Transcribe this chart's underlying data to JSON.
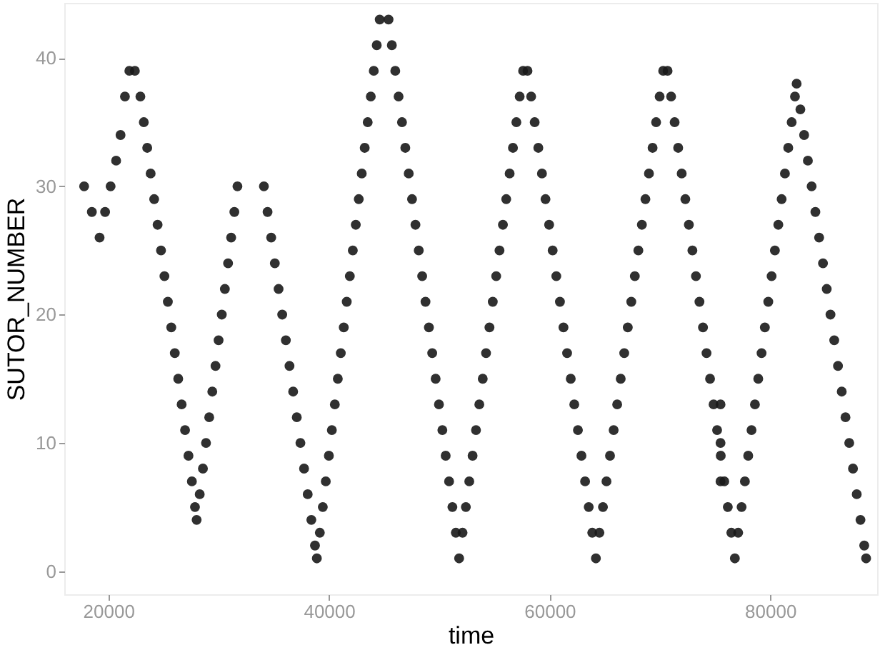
{
  "chart_data": {
    "type": "scatter",
    "xlabel": "time",
    "ylabel": "SUTOR_NUMBER",
    "color": "#1a1a1a",
    "marker": "circle",
    "grid": false,
    "xlim": [
      16000,
      89700
    ],
    "xticks": [
      20000,
      40000,
      60000,
      80000
    ],
    "ylim": [
      -1.8,
      44.3
    ],
    "yticks": [
      0,
      10,
      20,
      30,
      40
    ],
    "x": [
      17800,
      18500,
      19200,
      19700,
      20200,
      20700,
      21100,
      21500,
      21900,
      22400,
      22900,
      23210,
      23520,
      23830,
      24150,
      24460,
      24770,
      25080,
      25390,
      25700,
      26020,
      26330,
      26640,
      26950,
      27260,
      27570,
      27850,
      28000,
      28280,
      28570,
      28850,
      29140,
      29420,
      29710,
      29990,
      30280,
      30560,
      30850,
      31130,
      31420,
      31700,
      34100,
      34430,
      34760,
      35090,
      35430,
      35760,
      36090,
      36420,
      36750,
      37080,
      37410,
      37740,
      38070,
      38400,
      38730,
      38900,
      39170,
      39440,
      39710,
      39990,
      40260,
      40530,
      40800,
      41070,
      41340,
      41610,
      41890,
      42160,
      42430,
      42700,
      42970,
      43240,
      43510,
      43790,
      44060,
      44330,
      44600,
      45400,
      45700,
      46010,
      46310,
      46620,
      46920,
      47230,
      47530,
      47840,
      48140,
      48450,
      48750,
      49060,
      49360,
      49670,
      49970,
      50280,
      50580,
      50890,
      51190,
      51500,
      51800,
      52110,
      52410,
      52720,
      53020,
      53330,
      53630,
      53940,
      54240,
      54550,
      54850,
      55160,
      55460,
      55770,
      56070,
      56380,
      56680,
      56990,
      57290,
      57600,
      58000,
      58330,
      58650,
      58980,
      59310,
      59630,
      59960,
      60280,
      60610,
      60940,
      61260,
      61590,
      61920,
      62240,
      62570,
      62890,
      63220,
      63550,
      63870,
      64200,
      64520,
      64840,
      65160,
      65480,
      65810,
      66130,
      66450,
      66770,
      67090,
      67410,
      67730,
      68050,
      68370,
      68690,
      69010,
      69340,
      69660,
      69980,
      70300,
      70700,
      71020,
      71340,
      71660,
      71980,
      72310,
      72630,
      72950,
      73270,
      73590,
      73910,
      74230,
      74550,
      74870,
      75190,
      75520,
      75840,
      76160,
      76480,
      76800,
      75500,
      75500,
      75500,
      77100,
      77410,
      77710,
      78010,
      78310,
      78620,
      78920,
      79220,
      79520,
      79830,
      80130,
      80430,
      80740,
      81040,
      81340,
      81640,
      81950,
      82250,
      82400,
      82740,
      83080,
      83420,
      83760,
      84100,
      84440,
      84790,
      85130,
      85470,
      85810,
      86150,
      86490,
      86830,
      87170,
      87510,
      87850,
      88190,
      88530,
      88700
    ],
    "values": [
      30,
      28,
      26,
      28,
      30,
      32,
      34,
      37,
      39,
      39,
      37,
      35,
      33,
      31,
      29,
      27,
      25,
      23,
      21,
      19,
      17,
      15,
      13,
      11,
      9,
      7,
      5,
      4,
      6,
      8,
      10,
      12,
      14,
      16,
      18,
      20,
      22,
      24,
      26,
      28,
      30,
      30,
      28,
      26,
      24,
      22,
      20,
      18,
      16,
      14,
      12,
      10,
      8,
      6,
      4,
      2,
      1,
      3,
      5,
      7,
      9,
      11,
      13,
      15,
      17,
      19,
      21,
      23,
      25,
      27,
      29,
      31,
      33,
      35,
      37,
      39,
      41,
      43,
      43,
      41,
      39,
      37,
      35,
      33,
      31,
      29,
      27,
      25,
      23,
      21,
      19,
      17,
      15,
      13,
      11,
      9,
      7,
      5,
      3,
      1,
      3,
      5,
      7,
      9,
      11,
      13,
      15,
      17,
      19,
      21,
      23,
      25,
      27,
      29,
      31,
      33,
      35,
      37,
      39,
      39,
      37,
      35,
      33,
      31,
      29,
      27,
      25,
      23,
      21,
      19,
      17,
      15,
      13,
      11,
      9,
      7,
      5,
      3,
      1,
      3,
      5,
      7,
      9,
      11,
      13,
      15,
      17,
      19,
      21,
      23,
      25,
      27,
      29,
      31,
      33,
      35,
      37,
      39,
      39,
      37,
      35,
      33,
      31,
      29,
      27,
      25,
      23,
      21,
      19,
      17,
      15,
      13,
      11,
      9,
      7,
      5,
      3,
      1,
      13,
      10,
      7,
      3,
      5,
      7,
      9,
      11,
      13,
      15,
      17,
      19,
      21,
      23,
      25,
      27,
      29,
      31,
      33,
      35,
      37,
      38,
      36,
      34,
      32,
      30,
      28,
      26,
      24,
      22,
      20,
      18,
      16,
      14,
      12,
      10,
      8,
      6,
      4,
      2,
      1
    ]
  }
}
